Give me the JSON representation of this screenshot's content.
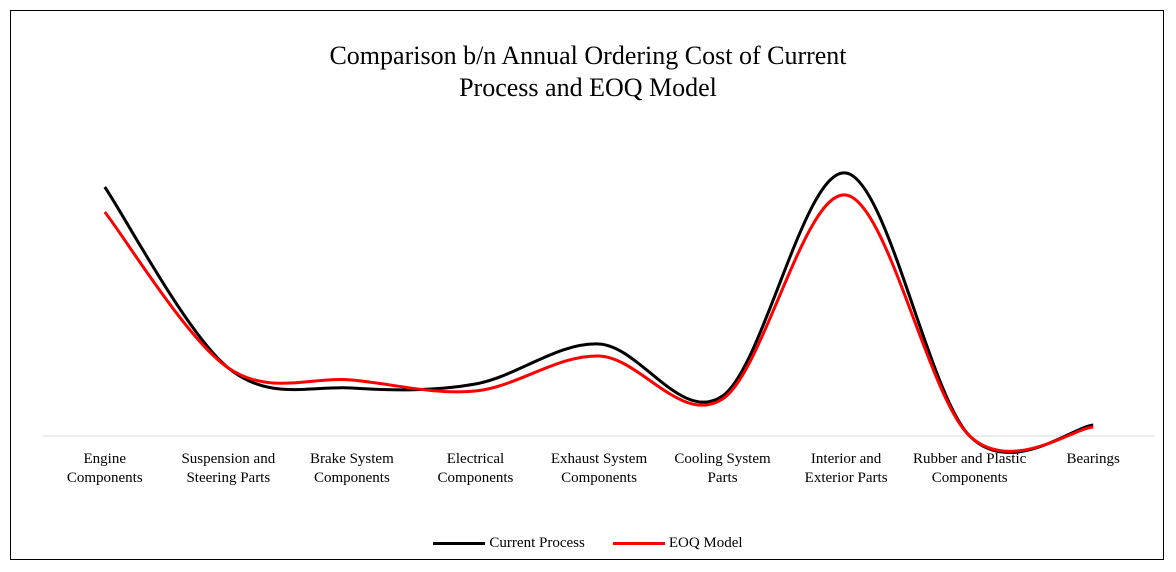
{
  "chart_data": {
    "type": "line",
    "title": "Comparison b/n Annual Ordering Cost of Current Process and EOQ Model",
    "categories": [
      "Engine Components",
      "Suspension and Steering Parts",
      "Brake System Components",
      "Electrical Components",
      "Exhaust System Components",
      "Cooling System Parts",
      "Interior and Exterior Parts",
      "Rubber and Plastic Components",
      "Bearings"
    ],
    "series": [
      {
        "name": "Current Process",
        "color": "#000000",
        "values": [
          249,
          68,
          48,
          52,
          92,
          40,
          263,
          0,
          11
        ]
      },
      {
        "name": "EOQ Model",
        "color": "#ff0000",
        "values": [
          224,
          68,
          56,
          45,
          80,
          37,
          241,
          0,
          9
        ]
      }
    ],
    "ylim": [
      0,
      300
    ],
    "legend": "bottom"
  }
}
